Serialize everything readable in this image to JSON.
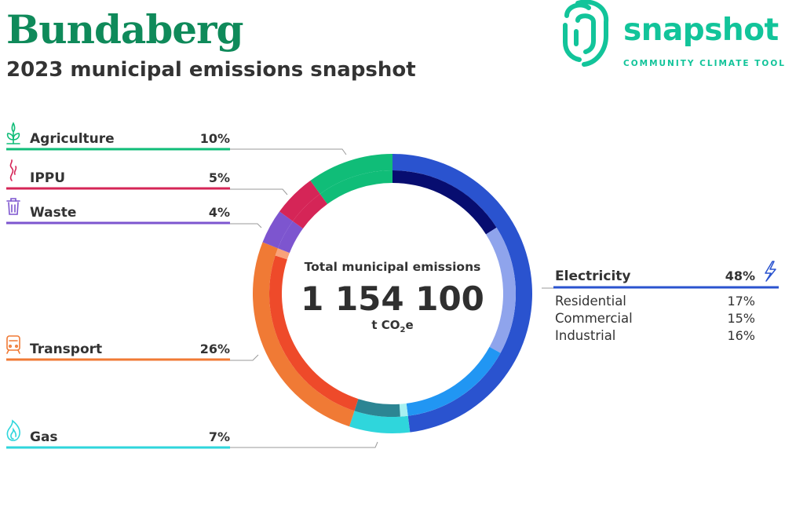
{
  "header": {
    "title": "Bundaberg",
    "subtitle": "2023 municipal emissions snapshot"
  },
  "logo": {
    "word": "snapshot",
    "tagline": "COMMUNITY CLIMATE TOOL",
    "color": "#12c49a"
  },
  "center": {
    "caption": "Total municipal emissions",
    "value": "1 154 100",
    "unit_prefix": "t CO",
    "unit_sub": "2",
    "unit_suffix": "e"
  },
  "chart_data": {
    "type": "pie",
    "title": "Total municipal emissions",
    "total": 1154100,
    "unit": "t CO2e",
    "slices": [
      {
        "name": "Electricity",
        "value": 48,
        "label": "48%",
        "color": "#2a53cf",
        "icon": "lightning-icon",
        "subs": [
          {
            "name": "Industrial",
            "value": 16,
            "label": "16%",
            "color": "#070d70"
          },
          {
            "name": "Residential",
            "value": 17,
            "label": "17%",
            "color": "#8fa4ec"
          },
          {
            "name": "Commercial",
            "value": 15,
            "label": "15%",
            "color": "#2196f3"
          }
        ]
      },
      {
        "name": "Gas",
        "value": 7,
        "label": "7%",
        "color": "#2fd6dc",
        "icon": "flame-icon",
        "subs": [
          {
            "name": "",
            "value": 1,
            "color": "#a6f0f1"
          },
          {
            "name": "",
            "value": 6,
            "color": "#2c8593"
          }
        ]
      },
      {
        "name": "Transport",
        "value": 26,
        "label": "26%",
        "color": "#f07a35",
        "icon": "train-icon",
        "subs": [
          {
            "name": "",
            "value": 25,
            "color": "#ee4a2a"
          },
          {
            "name": "",
            "value": 1,
            "color": "#f9a27a"
          }
        ]
      },
      {
        "name": "Waste",
        "value": 4,
        "label": "4%",
        "color": "#7d55cf",
        "icon": "trash-icon"
      },
      {
        "name": "IPPU",
        "value": 5,
        "label": "5%",
        "color": "#d52557",
        "icon": "smoke-icon"
      },
      {
        "name": "Agriculture",
        "value": 10,
        "label": "10%",
        "color": "#10bd78",
        "icon": "sprout-icon"
      }
    ]
  }
}
